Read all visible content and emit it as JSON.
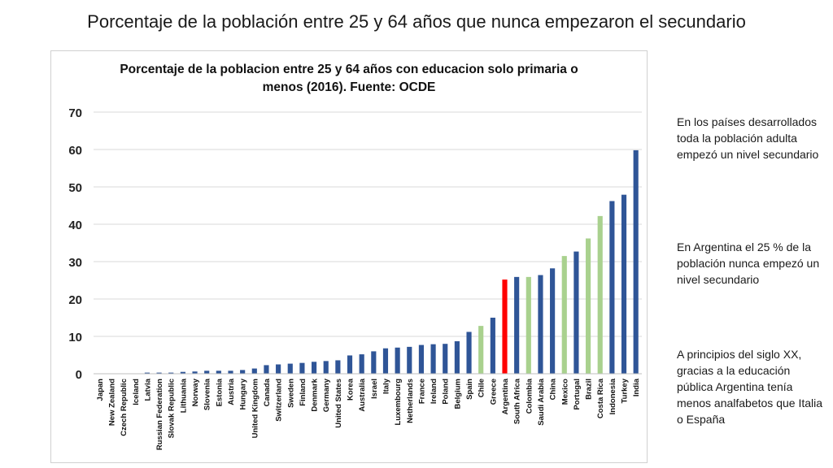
{
  "slide": {
    "title": "Porcentaje de la población entre 25 y 64 años que nunca empezaron el secundario"
  },
  "notes": [
    "En los países desarrollados toda la población adulta empezó un nivel secundario",
    "En Argentina el 25 % de la población nunca empezó un nivel secundario",
    "A principios del siglo XX, gracias a la educación pública Argentina tenía menos analfabetos que Italia o España"
  ],
  "colors": {
    "oecd": "#2f5597",
    "latin_america": "#a9d18e",
    "argentina": "#ff0000",
    "grid": "#d9d9d9"
  },
  "chart_data": {
    "type": "bar",
    "title_lines": [
      "Porcentaje de la poblacion entre 25 y 64 años con educacion solo primaria o",
      "menos (2016). Fuente: OCDE"
    ],
    "xlabel": "",
    "ylabel": "",
    "ylim": [
      0,
      70
    ],
    "yticks": [
      0,
      10,
      20,
      30,
      40,
      50,
      60,
      70
    ],
    "grid": true,
    "legend": "none",
    "categories": [
      "Japan",
      "New Zealand",
      "Czech Republic",
      "Iceland",
      "Latvia",
      "Russian Federation",
      "Slovak Republic",
      "Lithuania",
      "Norway",
      "Slovenia",
      "Estonia",
      "Austria",
      "Hungary",
      "United Kingdom",
      "Canada",
      "Switzerland",
      "Sweden",
      "Finland",
      "Denmark",
      "Germany",
      "United States",
      "Korea",
      "Australia",
      "Israel",
      "Italy",
      "Luxembourg",
      "Netherlands",
      "France",
      "Ireland",
      "Poland",
      "Belgium",
      "Spain",
      "Chile",
      "Greece",
      "Argentina",
      "South Africa",
      "Colombia",
      "Saudi Arabia",
      "China",
      "Mexico",
      "Portugal",
      "Brazil",
      "Costa Rica",
      "Indonesia",
      "Turkey",
      "India"
    ],
    "values": [
      0,
      0,
      0,
      0,
      0.3,
      0.3,
      0.3,
      0.5,
      0.6,
      0.8,
      0.8,
      0.8,
      1.0,
      1.4,
      2.3,
      2.5,
      2.7,
      2.9,
      3.2,
      3.4,
      3.6,
      4.9,
      5.2,
      6.0,
      6.8,
      7.0,
      7.2,
      7.7,
      7.9,
      8.0,
      8.7,
      11.2,
      12.8,
      15.0,
      25.2,
      25.9,
      25.9,
      26.4,
      28.2,
      31.5,
      32.7,
      36.2,
      42.2,
      46.2,
      47.9,
      59.8
    ],
    "highlight": {
      "argentina": [
        "Argentina"
      ],
      "latin_america": [
        "Chile",
        "Colombia",
        "Mexico",
        "Brazil",
        "Costa Rica"
      ]
    }
  }
}
